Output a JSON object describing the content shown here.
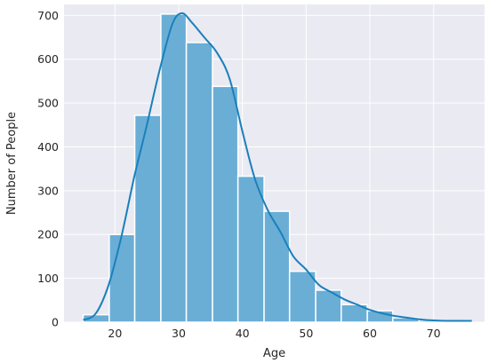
{
  "chart_data": {
    "type": "bar",
    "subtype": "histogram-with-kde",
    "title": "",
    "xlabel": "Age",
    "ylabel": "Number of People",
    "xlim": [
      12,
      78
    ],
    "ylim": [
      0,
      725
    ],
    "xticks": [
      20,
      30,
      40,
      50,
      60,
      70
    ],
    "yticks": [
      0,
      100,
      200,
      300,
      400,
      500,
      600,
      700
    ],
    "grid": true,
    "bin_edges": [
      15,
      19.1,
      23.1,
      27.2,
      31.2,
      35.3,
      39.3,
      43.4,
      47.4,
      51.5,
      55.5,
      59.6,
      63.6,
      67.7,
      71.7,
      75.8
    ],
    "values": [
      17,
      200,
      472,
      703,
      638,
      538,
      333,
      253,
      116,
      73,
      40,
      26,
      10,
      4,
      3
    ],
    "kde": {
      "x": [
        15,
        17,
        19,
        21,
        23,
        25,
        27,
        29,
        30.5,
        32,
        34,
        36,
        38,
        40,
        42,
        44,
        46,
        48,
        50,
        52,
        54,
        56,
        58,
        60,
        62,
        64,
        66,
        68,
        70,
        72,
        74,
        76
      ],
      "y": [
        5,
        20,
        85,
        195,
        330,
        450,
        575,
        680,
        705,
        685,
        650,
        615,
        555,
        435,
        325,
        255,
        205,
        150,
        120,
        85,
        68,
        52,
        40,
        28,
        20,
        14,
        10,
        6,
        4,
        3,
        3,
        3
      ]
    },
    "colors": {
      "bar": "#6aaed6",
      "bar_edge": "#ffffff",
      "kde_line": "#1a80bb",
      "plot_background": "#eaeaf2",
      "grid": "#ffffff"
    }
  }
}
